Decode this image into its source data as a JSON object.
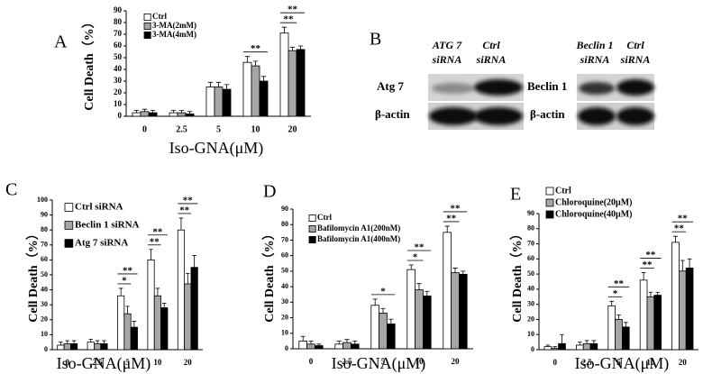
{
  "chart_data": [
    {
      "type": "bar",
      "panel_label": "A",
      "xlabel": "Iso-GNA(μM)",
      "ylabel": "Cell Death（%）",
      "categories": [
        "0",
        "2.5",
        "5",
        "10",
        "20"
      ],
      "ylim": [
        0,
        90
      ],
      "yticks": [
        0,
        10,
        20,
        30,
        40,
        50,
        60,
        70,
        80,
        90
      ],
      "series": [
        {
          "name": "Ctrl",
          "color": "#ffffff",
          "values": [
            3,
            3,
            25,
            46,
            71
          ],
          "errors": [
            2,
            2,
            4,
            5,
            5
          ]
        },
        {
          "name": "3-MA(2mM)",
          "color": "#a6a6a6",
          "values": [
            4,
            3,
            25,
            43,
            56
          ],
          "errors": [
            2,
            2,
            4,
            4,
            3
          ]
        },
        {
          "name": "3-MA(4mM)",
          "color": "#000000",
          "values": [
            3,
            2,
            23,
            30,
            57
          ],
          "errors": [
            2,
            2,
            4,
            4,
            3
          ]
        }
      ],
      "annotations": [
        {
          "text": "**",
          "category": "10",
          "series": [
            "Ctrl",
            "3-MA(4mM)"
          ]
        },
        {
          "text": "**",
          "category": "20",
          "series": [
            "Ctrl",
            "3-MA(2mM)"
          ]
        },
        {
          "text": "**",
          "category": "20",
          "series": [
            "Ctrl",
            "3-MA(4mM)"
          ]
        }
      ]
    },
    {
      "type": "bar",
      "panel_label": "C",
      "xlabel": "Iso-GNA(μM)",
      "ylabel": "Cell Death（%）",
      "categories": [
        "0",
        "2.5",
        "5",
        "10",
        "20"
      ],
      "ylim": [
        0,
        100
      ],
      "yticks": [
        0,
        10,
        20,
        30,
        40,
        50,
        60,
        70,
        80,
        90,
        100
      ],
      "series": [
        {
          "name": "Ctrl siRNA",
          "color": "#ffffff",
          "values": [
            3,
            5,
            36,
            60,
            80
          ],
          "errors": [
            2,
            2,
            5,
            7,
            8
          ]
        },
        {
          "name": "Beclin 1 siRNA",
          "color": "#a6a6a6",
          "values": [
            4,
            4,
            24,
            36,
            44
          ],
          "errors": [
            2,
            2,
            5,
            5,
            7
          ]
        },
        {
          "name": "Atg 7 siRNA",
          "color": "#000000",
          "values": [
            4,
            4,
            15,
            28,
            55
          ],
          "errors": [
            2,
            2,
            4,
            3,
            8
          ]
        }
      ],
      "annotations": [
        {
          "text": "*",
          "category": "5",
          "series": [
            "Ctrl siRNA",
            "Beclin 1 siRNA"
          ]
        },
        {
          "text": "**",
          "category": "5",
          "series": [
            "Ctrl siRNA",
            "Atg 7 siRNA"
          ]
        },
        {
          "text": "**",
          "category": "10",
          "series": [
            "Ctrl siRNA",
            "Beclin 1 siRNA"
          ]
        },
        {
          "text": "**",
          "category": "10",
          "series": [
            "Ctrl siRNA",
            "Atg 7 siRNA"
          ]
        },
        {
          "text": "**",
          "category": "20",
          "series": [
            "Ctrl siRNA",
            "Beclin 1 siRNA"
          ]
        },
        {
          "text": "**",
          "category": "20",
          "series": [
            "Ctrl siRNA",
            "Atg 7 siRNA"
          ]
        }
      ]
    },
    {
      "type": "bar",
      "panel_label": "D",
      "xlabel": "Iso-GNA(μM)",
      "ylabel": "Cell Death（%）",
      "categories": [
        "0",
        "2.5",
        "5",
        "10",
        "20"
      ],
      "ylim": [
        0,
        90
      ],
      "yticks": [
        0,
        10,
        20,
        30,
        40,
        50,
        60,
        70,
        80,
        90
      ],
      "series": [
        {
          "name": "Ctrl",
          "color": "#ffffff",
          "values": [
            5,
            3,
            28,
            51,
            75
          ],
          "errors": [
            3,
            2,
            4,
            3,
            4
          ]
        },
        {
          "name": "Bafilomycin A1(200nM)",
          "color": "#a6a6a6",
          "values": [
            3,
            4,
            23,
            38,
            49
          ],
          "errors": [
            2,
            2,
            3,
            4,
            3
          ]
        },
        {
          "name": "Bafilomycin A1(400nM)",
          "color": "#000000",
          "values": [
            2,
            3,
            16,
            34,
            48
          ],
          "errors": [
            1,
            2,
            3,
            3,
            2
          ]
        }
      ],
      "annotations": [
        {
          "text": "*",
          "category": "5",
          "series": [
            "Ctrl",
            "Bafilomycin A1(400nM)"
          ]
        },
        {
          "text": "*",
          "category": "10",
          "series": [
            "Ctrl",
            "Bafilomycin A1(200nM)"
          ]
        },
        {
          "text": "**",
          "category": "10",
          "series": [
            "Ctrl",
            "Bafilomycin A1(400nM)"
          ]
        },
        {
          "text": "**",
          "category": "20",
          "series": [
            "Ctrl",
            "Bafilomycin A1(200nM)"
          ]
        },
        {
          "text": "**",
          "category": "20",
          "series": [
            "Ctrl",
            "Bafilomycin A1(400nM)"
          ]
        }
      ]
    },
    {
      "type": "bar",
      "panel_label": "E",
      "xlabel": "Iso-GNA(μM)",
      "ylabel": "Cell Death（%）",
      "categories": [
        "0",
        "2.5",
        "5",
        "10",
        "20"
      ],
      "ylim": [
        0,
        90
      ],
      "yticks": [
        0,
        10,
        20,
        30,
        40,
        50,
        60,
        70,
        80,
        90
      ],
      "series": [
        {
          "name": "Ctrl",
          "color": "#ffffff",
          "values": [
            2,
            3,
            29,
            46,
            71
          ],
          "errors": [
            1,
            2,
            3,
            5,
            4
          ]
        },
        {
          "name": "Chloroquine(20μM)",
          "color": "#a6a6a6",
          "values": [
            1,
            4,
            20,
            35,
            52
          ],
          "errors": [
            1,
            2,
            3,
            3,
            7
          ]
        },
        {
          "name": "Chloroquine(40μM)",
          "color": "#000000",
          "values": [
            4,
            4,
            15,
            36,
            54
          ],
          "errors": [
            6,
            2,
            3,
            2,
            6
          ]
        }
      ],
      "annotations": [
        {
          "text": "*",
          "category": "5",
          "series": [
            "Ctrl",
            "Chloroquine(20μM)"
          ]
        },
        {
          "text": "**",
          "category": "5",
          "series": [
            "Ctrl",
            "Chloroquine(40μM)"
          ]
        },
        {
          "text": "**",
          "category": "10",
          "series": [
            "Ctrl",
            "Chloroquine(20μM)"
          ]
        },
        {
          "text": "**",
          "category": "10",
          "series": [
            "Ctrl",
            "Chloroquine(40μM)"
          ]
        },
        {
          "text": "**",
          "category": "20",
          "series": [
            "Ctrl",
            "Chloroquine(20μM)"
          ]
        },
        {
          "text": "**",
          "category": "20",
          "series": [
            "Ctrl",
            "Chloroquine(40μM)"
          ]
        }
      ]
    }
  ],
  "blot": {
    "panel_label": "B",
    "groups": [
      {
        "lanes": [
          [
            "ATG 7",
            "siRNA"
          ],
          [
            "Ctrl",
            "siRNA"
          ]
        ],
        "rows": [
          "Atg 7",
          "β-actin"
        ]
      },
      {
        "lanes": [
          [
            "Beclin 1",
            "siRNA"
          ],
          [
            "Ctrl",
            "siRNA"
          ]
        ],
        "rows": [
          "Beclin 1",
          "β-actin"
        ]
      }
    ]
  }
}
